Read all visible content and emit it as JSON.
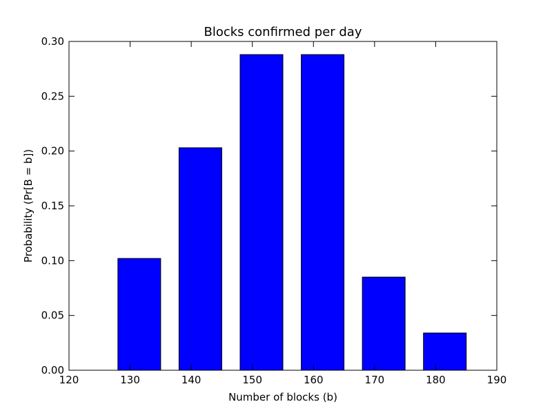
{
  "chart_data": {
    "type": "bar",
    "title": "Blocks confirmed per day",
    "xlabel": "Number of blocks (b)",
    "ylabel": "Probability (Pr[B = b])",
    "x": [
      128,
      138,
      148,
      158,
      168,
      178
    ],
    "values": [
      0.102,
      0.203,
      0.288,
      0.288,
      0.085,
      0.034
    ],
    "bar_width": 7,
    "xlim": [
      120,
      190
    ],
    "ylim": [
      0,
      0.3
    ],
    "xticks": [
      "120",
      "130",
      "140",
      "150",
      "160",
      "170",
      "180",
      "190"
    ],
    "yticks": [
      "0.00",
      "0.05",
      "0.10",
      "0.15",
      "0.20",
      "0.25",
      "0.30"
    ],
    "bar_color": "#0000ff",
    "grid": false
  }
}
